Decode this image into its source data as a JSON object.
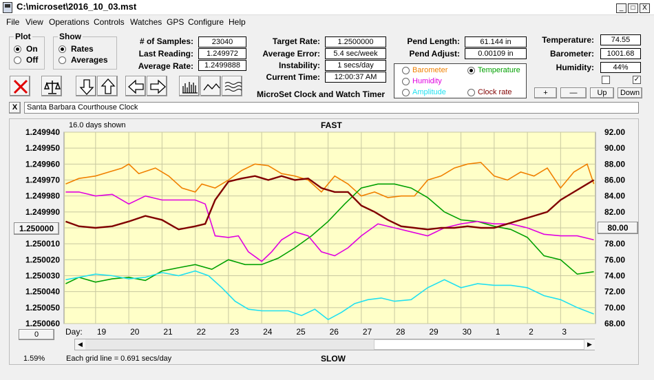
{
  "window": {
    "title": "C:\\microset\\2016_10_03.mst",
    "min": "_",
    "max": "□",
    "close": "X"
  },
  "menu": [
    "File",
    "View",
    "Operations",
    "Controls",
    "Watches",
    "GPS",
    "Configure",
    "Help"
  ],
  "plot_group": {
    "title": "Plot",
    "on": "On",
    "off": "Off",
    "selected": "On"
  },
  "show_group": {
    "title": "Show",
    "rates": "Rates",
    "averages": "Averages",
    "selected": "Rates"
  },
  "stats": [
    {
      "label": "# of Samples:",
      "value": "23040"
    },
    {
      "label": "Last Reading:",
      "value": "1.249972"
    },
    {
      "label": "Average Rate:",
      "value": "1.2499888"
    }
  ],
  "targets": [
    {
      "label": "Target Rate:",
      "value": "1.2500000"
    },
    {
      "label": "Average Error:",
      "value": "5.4 sec/week"
    },
    {
      "label": "Instability:",
      "value": "1 secs/day"
    },
    {
      "label": "Current Time:",
      "value": "12:00:37 AM"
    }
  ],
  "pend": [
    {
      "label": "Pend Length:",
      "value": "61.144 in"
    },
    {
      "label": "Pend Adjust:",
      "value": "0.00109 in"
    }
  ],
  "env": [
    {
      "label": "Temperature:",
      "value": "74.55"
    },
    {
      "label": "Barometer:",
      "value": "1001.68"
    },
    {
      "label": "Humidity:",
      "value": "44%"
    }
  ],
  "app_label": "MicroSet Clock and Watch Timer",
  "series_select": {
    "options": [
      {
        "label": "Barometer",
        "color": "#f08000"
      },
      {
        "label": "Temperature",
        "color": "#00a000"
      },
      {
        "label": "Humidity",
        "color": "#e000e0"
      },
      {
        "label": "Amplitude",
        "color": "#20e0f0"
      },
      {
        "label": "Clock rate",
        "color": "#800000"
      }
    ],
    "selected": "Temperature"
  },
  "env_buttons": {
    "plus": "+",
    "minus": "—",
    "up": "Up",
    "down": "Down"
  },
  "checkboxes": {
    "left": false,
    "right": true
  },
  "clock_name": "Santa Barbara Courthouse Clock",
  "clock_close": "X",
  "chart_header": {
    "shown": "16.0 days shown",
    "fast": "FAST",
    "slow": "SLOW",
    "grid_note": "Each grid line = 0.691 secs/day"
  },
  "left_buttons": {
    "center": "1.250000",
    "offset": "0",
    "pct": "1.59%"
  },
  "right_button": "80.00",
  "chart_data": {
    "type": "line",
    "left_axis": {
      "ticks": [
        "1.249940",
        "1.249950",
        "1.249960",
        "1.249970",
        "1.249980",
        "1.249990",
        "1.250000",
        "1.250010",
        "1.250020",
        "1.250030",
        "1.250040",
        "1.250050",
        "1.250060"
      ],
      "min": 1.24994,
      "max": 1.25006,
      "inverted": true
    },
    "right_axis": {
      "ticks": [
        "92.00",
        "90.00",
        "88.00",
        "86.00",
        "84.00",
        "82.00",
        "80.00",
        "78.00",
        "76.00",
        "74.00",
        "72.00",
        "70.00",
        "68.00"
      ],
      "min": 68,
      "max": 92
    },
    "x_label": "Day:",
    "x_days": [
      "19",
      "20",
      "21",
      "22",
      "23",
      "24",
      "25",
      "26",
      "27",
      "28",
      "29",
      "30",
      "1",
      "2",
      "3"
    ],
    "x_range": [
      18.05,
      34.05
    ],
    "grid": true,
    "series": [
      {
        "name": "Barometer",
        "color": "#f08000",
        "axis": "right",
        "x": [
          18.1,
          18.5,
          19.0,
          19.4,
          19.8,
          20.0,
          20.3,
          20.8,
          21.2,
          21.6,
          22.0,
          22.2,
          22.6,
          23.0,
          23.4,
          23.8,
          24.2,
          24.6,
          25.0,
          25.4,
          25.8,
          26.2,
          26.6,
          27.0,
          27.4,
          27.8,
          28.2,
          28.6,
          29.0,
          29.4,
          29.8,
          30.2,
          30.6,
          31.0,
          31.4,
          31.8,
          32.2,
          32.6,
          33.0,
          33.4,
          33.8,
          34.0
        ],
        "y": [
          85.5,
          86.2,
          86.5,
          87.0,
          87.5,
          88.0,
          86.8,
          87.5,
          86.5,
          85.0,
          84.5,
          85.5,
          85.0,
          86.0,
          87.2,
          88.0,
          87.8,
          86.8,
          86.5,
          86.0,
          84.5,
          86.5,
          85.5,
          84.0,
          84.5,
          83.8,
          84.0,
          84.0,
          86.0,
          86.5,
          87.5,
          88.0,
          88.2,
          86.5,
          86.0,
          87.0,
          86.5,
          87.5,
          85.0,
          87.0,
          88.0,
          85.5
        ]
      },
      {
        "name": "Temperature",
        "color": "#00a000",
        "axis": "right",
        "x": [
          18.1,
          18.5,
          19.0,
          19.5,
          20.0,
          20.5,
          21.0,
          21.5,
          22.0,
          22.5,
          23.0,
          23.5,
          24.0,
          24.5,
          25.0,
          25.5,
          26.0,
          26.5,
          27.0,
          27.5,
          28.0,
          28.5,
          29.0,
          29.5,
          30.0,
          30.5,
          31.0,
          31.5,
          32.0,
          32.5,
          33.0,
          33.5,
          34.0
        ],
        "y": [
          73.0,
          73.8,
          73.2,
          73.6,
          73.8,
          73.4,
          74.6,
          75.0,
          75.4,
          74.8,
          76.0,
          75.4,
          75.4,
          76.2,
          77.5,
          79.0,
          80.8,
          83.0,
          85.0,
          85.5,
          85.5,
          85.0,
          83.8,
          82.0,
          81.0,
          80.8,
          80.2,
          79.8,
          78.8,
          76.5,
          76.0,
          74.2,
          74.5
        ]
      },
      {
        "name": "Humidity",
        "color": "#e000e0",
        "axis": "right",
        "x": [
          18.1,
          18.5,
          19.0,
          19.5,
          20.0,
          20.5,
          21.0,
          21.5,
          22.0,
          22.3,
          22.6,
          23.0,
          23.3,
          23.6,
          24.0,
          24.3,
          24.6,
          25.0,
          25.4,
          25.8,
          26.2,
          26.6,
          27.0,
          27.5,
          28.0,
          28.5,
          29.0,
          29.5,
          30.0,
          30.5,
          31.0,
          31.5,
          32.0,
          32.5,
          33.0,
          33.5,
          34.0
        ],
        "y": [
          84.5,
          84.5,
          84.0,
          84.2,
          83.0,
          84.0,
          83.5,
          83.5,
          83.5,
          83.0,
          79.0,
          78.8,
          79.0,
          77.0,
          75.8,
          77.0,
          78.5,
          79.5,
          79.0,
          77.0,
          76.5,
          77.5,
          79.0,
          80.5,
          80.0,
          79.5,
          79.0,
          80.0,
          80.5,
          80.8,
          80.5,
          80.5,
          80.0,
          79.2,
          79.0,
          79.0,
          78.5
        ]
      },
      {
        "name": "Amplitude",
        "color": "#20e0f0",
        "axis": "right",
        "x": [
          18.1,
          18.5,
          19.0,
          19.5,
          20.0,
          20.5,
          21.0,
          21.5,
          22.0,
          22.4,
          22.8,
          23.2,
          23.6,
          24.0,
          24.4,
          24.8,
          25.2,
          25.6,
          26.0,
          26.4,
          26.8,
          27.2,
          27.6,
          28.0,
          28.5,
          29.0,
          29.5,
          30.0,
          30.5,
          31.0,
          31.5,
          32.0,
          32.5,
          33.0,
          33.5,
          34.0
        ],
        "y": [
          73.5,
          73.8,
          74.2,
          74.0,
          73.6,
          73.8,
          74.4,
          74.0,
          74.6,
          74.0,
          72.5,
          70.8,
          69.8,
          69.6,
          69.6,
          69.6,
          69.0,
          69.8,
          68.5,
          69.4,
          70.5,
          71.0,
          71.2,
          70.8,
          71.0,
          72.5,
          73.5,
          72.5,
          73.0,
          72.8,
          72.8,
          72.5,
          71.5,
          71.0,
          70.0,
          69.2
        ]
      },
      {
        "name": "Clock rate",
        "color": "#800000",
        "axis": "right",
        "x": [
          18.1,
          18.5,
          19.0,
          19.5,
          20.0,
          20.5,
          21.0,
          21.5,
          22.0,
          22.3,
          22.6,
          23.0,
          23.4,
          23.8,
          24.2,
          24.6,
          25.0,
          25.4,
          25.8,
          26.2,
          26.6,
          27.0,
          27.4,
          27.8,
          28.2,
          28.6,
          29.0,
          29.4,
          29.8,
          30.2,
          30.6,
          31.0,
          31.4,
          31.8,
          32.2,
          32.6,
          33.0,
          33.4,
          33.8,
          34.0
        ],
        "y": [
          80.8,
          80.2,
          80.0,
          80.2,
          80.8,
          81.5,
          81.0,
          79.8,
          80.2,
          80.5,
          83.5,
          85.8,
          86.2,
          86.5,
          86.0,
          86.5,
          86.0,
          86.2,
          85.0,
          84.5,
          84.5,
          82.8,
          82.0,
          81.0,
          80.2,
          80.0,
          79.8,
          80.0,
          80.0,
          80.2,
          80.0,
          80.0,
          80.5,
          81.0,
          81.5,
          82.0,
          83.5,
          84.5,
          85.5,
          86.0
        ]
      }
    ]
  }
}
